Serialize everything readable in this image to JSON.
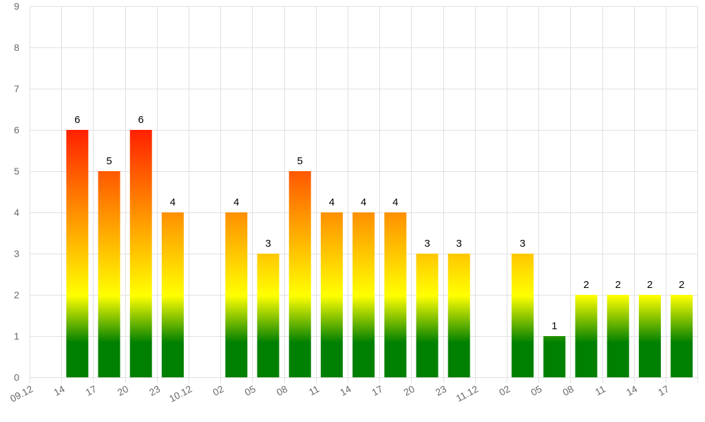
{
  "chart_data": {
    "type": "bar",
    "categories": [
      "09.12",
      "14",
      "17",
      "20",
      "23",
      "10.12",
      "02",
      "05",
      "08",
      "11",
      "14",
      "17",
      "20",
      "23",
      "11.12",
      "02",
      "05",
      "08",
      "11",
      "14",
      "17"
    ],
    "values": [
      null,
      6,
      5,
      6,
      4,
      null,
      4,
      3,
      5,
      4,
      4,
      4,
      3,
      3,
      null,
      3,
      1,
      2,
      2,
      2,
      2
    ],
    "data_labels": [
      "",
      "6",
      "5",
      "6",
      "4",
      "",
      "4",
      "3",
      "5",
      "4",
      "4",
      "4",
      "3",
      "3",
      "",
      "3",
      "1",
      "2",
      "2",
      "2",
      "2"
    ],
    "y_ticks": [
      "0",
      "1",
      "2",
      "3",
      "4",
      "5",
      "6",
      "7",
      "8",
      "9"
    ],
    "ylim": [
      0,
      9
    ],
    "grid": true,
    "legend": "none",
    "title": "",
    "xlabel": "",
    "ylabel": "",
    "colors": {
      "low": "#008000",
      "mid": "#ffff00",
      "high": "#ff2000",
      "grid": "#e0e0e0",
      "tick_text": "#666666",
      "label_text": "#000000"
    }
  }
}
